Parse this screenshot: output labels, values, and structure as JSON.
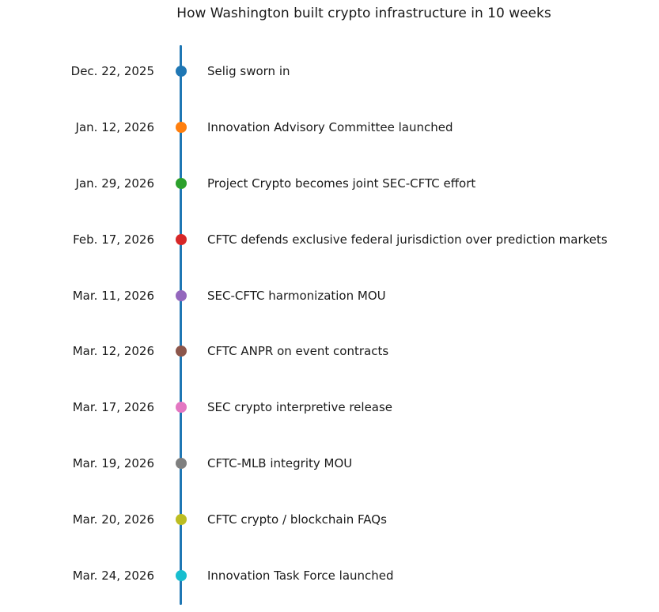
{
  "title": "How Washington built crypto infrastructure in 10 weeks",
  "timeline": {
    "line_color": "#1f77b4",
    "text_color": "#1a1a1a",
    "events": [
      {
        "date": "Dec. 22, 2025",
        "label": "Selig sworn in",
        "dot_color": "#1f77b4"
      },
      {
        "date": "Jan. 12, 2026",
        "label": "Innovation Advisory Committee launched",
        "dot_color": "#ff7f0e"
      },
      {
        "date": "Jan. 29, 2026",
        "label": "Project Crypto becomes joint SEC-CFTC effort",
        "dot_color": "#2ca02c"
      },
      {
        "date": "Feb. 17, 2026",
        "label": "CFTC defends exclusive federal jurisdiction over prediction markets",
        "dot_color": "#d62728"
      },
      {
        "date": "Mar. 11, 2026",
        "label": "SEC-CFTC harmonization MOU",
        "dot_color": "#9467bd"
      },
      {
        "date": "Mar. 12, 2026",
        "label": "CFTC ANPR on event contracts",
        "dot_color": "#8c564b"
      },
      {
        "date": "Mar. 17, 2026",
        "label": "SEC crypto interpretive release",
        "dot_color": "#e377c2"
      },
      {
        "date": "Mar. 19, 2026",
        "label": "CFTC-MLB integrity MOU",
        "dot_color": "#7f7f7f"
      },
      {
        "date": "Mar. 20, 2026",
        "label": "CFTC crypto / blockchain FAQs",
        "dot_color": "#bcbd22"
      },
      {
        "date": "Mar. 24, 2026",
        "label": "Innovation Task Force launched",
        "dot_color": "#17becf"
      }
    ]
  },
  "chart_data": {
    "type": "scatter",
    "variant": "vertical-timeline",
    "title": "How Washington built crypto infrastructure in 10 weeks",
    "xlabel": "",
    "ylabel": "",
    "grid": false,
    "legend": "none",
    "orientation": "vertical, earliest date at top",
    "x": [
      "Dec. 22, 2025",
      "Jan. 12, 2026",
      "Jan. 29, 2026",
      "Feb. 17, 2026",
      "Mar. 11, 2026",
      "Mar. 12, 2026",
      "Mar. 17, 2026",
      "Mar. 19, 2026",
      "Mar. 20, 2026",
      "Mar. 24, 2026"
    ],
    "annotations": [
      "Selig sworn in",
      "Innovation Advisory Committee launched",
      "Project Crypto becomes joint SEC-CFTC effort",
      "CFTC defends exclusive federal jurisdiction over prediction markets",
      "SEC-CFTC harmonization MOU",
      "CFTC ANPR on event contracts",
      "SEC crypto interpretive release",
      "CFTC-MLB integrity MOU",
      "CFTC crypto / blockchain FAQs",
      "Innovation Task Force launched"
    ],
    "marker_colors": [
      "#1f77b4",
      "#ff7f0e",
      "#2ca02c",
      "#d62728",
      "#9467bd",
      "#8c564b",
      "#e377c2",
      "#7f7f7f",
      "#bcbd22",
      "#17becf"
    ],
    "spine_color": "#1f77b4"
  }
}
